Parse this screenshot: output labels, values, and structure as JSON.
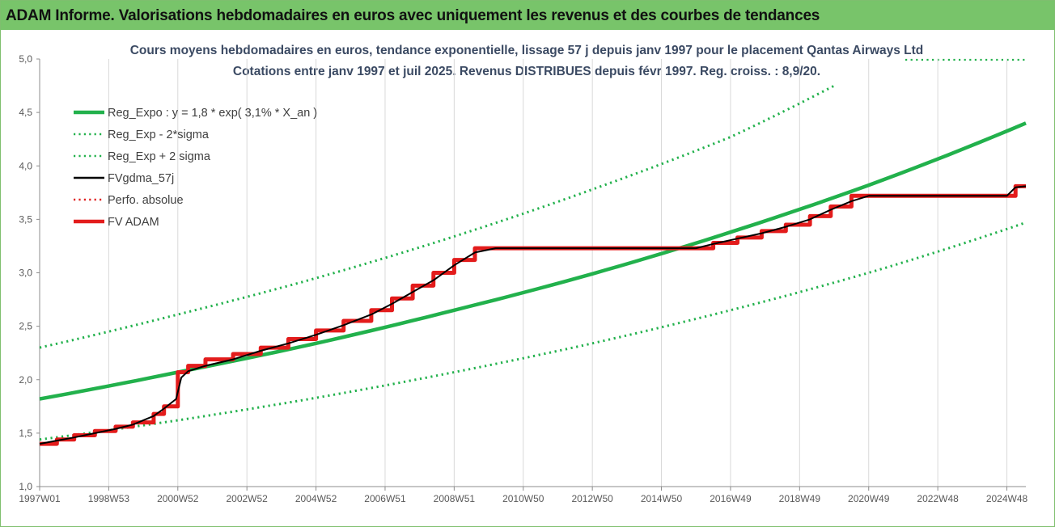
{
  "header": {
    "title": "ADAM Informe. Valorisations hebdomadaires en euros avec uniquement les revenus et des courbes de tendances"
  },
  "chart_data": {
    "type": "line",
    "title": "Cours moyens hebdomadaires en euros, tendance exponentielle, lissage 57 j depuis janv 1997 pour le placement Qantas Airways Ltd",
    "subtitle": "Cotations entre janv 1997 et juil 2025. Revenus DISTRIBUES depuis févr 1997. Reg. croiss. : 8,9/20.",
    "xlabel": "",
    "ylabel": "",
    "x_range": [
      1997.0,
      2025.55
    ],
    "ylim": [
      1.0,
      5.0
    ],
    "y_ticks": [
      "1,0",
      "1,5",
      "2,0",
      "2,5",
      "3,0",
      "3,5",
      "4,0",
      "4,5",
      "5,0"
    ],
    "x_ticks": [
      {
        "label": "1997W01",
        "x": 1997.0
      },
      {
        "label": "1998W53",
        "x": 1999.0
      },
      {
        "label": "2000W52",
        "x": 2001.0
      },
      {
        "label": "2002W52",
        "x": 2003.0
      },
      {
        "label": "2004W52",
        "x": 2005.0
      },
      {
        "label": "2006W51",
        "x": 2007.0
      },
      {
        "label": "2008W51",
        "x": 2009.0
      },
      {
        "label": "2010W50",
        "x": 2011.0
      },
      {
        "label": "2012W50",
        "x": 2013.0
      },
      {
        "label": "2014W50",
        "x": 2015.0
      },
      {
        "label": "2016W49",
        "x": 2017.0
      },
      {
        "label": "2018W49",
        "x": 2019.0
      },
      {
        "label": "2020W49",
        "x": 2021.0
      },
      {
        "label": "2022W48",
        "x": 2023.0
      },
      {
        "label": "2024W48",
        "x": 2025.0
      }
    ],
    "grid": "vertical",
    "legend_position": "top-left",
    "series": [
      {
        "name": "Reg_Expo : y = 1,8 * exp( 3,1% *  X_an )",
        "color": "#22b14c",
        "style": "solid",
        "width": 4.5,
        "points": [
          [
            1997.0,
            1.82
          ],
          [
            2001.0,
            2.07
          ],
          [
            2005.0,
            2.34
          ],
          [
            2009.0,
            2.65
          ],
          [
            2013.0,
            2.99
          ],
          [
            2017.0,
            3.38
          ],
          [
            2021.0,
            3.82
          ],
          [
            2025.55,
            4.4
          ]
        ]
      },
      {
        "name": "Reg_Exp - 2*sigma",
        "color": "#22b14c",
        "style": "dotted",
        "width": 3,
        "points": [
          [
            1997.0,
            1.44
          ],
          [
            2001.0,
            1.62
          ],
          [
            2005.0,
            1.83
          ],
          [
            2009.0,
            2.07
          ],
          [
            2013.0,
            2.34
          ],
          [
            2017.0,
            2.65
          ],
          [
            2021.0,
            3.0
          ],
          [
            2025.55,
            3.47
          ]
        ]
      },
      {
        "name": "Reg_Exp + 2 sigma",
        "color": "#22b14c",
        "style": "dotted",
        "width": 3,
        "points": [
          [
            1997.0,
            2.3
          ],
          [
            2001.0,
            2.61
          ],
          [
            2005.0,
            2.95
          ],
          [
            2009.0,
            3.34
          ],
          [
            2013.0,
            3.78
          ],
          [
            2017.0,
            4.27
          ],
          [
            2020.0,
            4.75
          ]
        ]
      },
      {
        "name": "FVgdma_57j",
        "color": "#000000",
        "style": "solid",
        "width": 2,
        "points": [
          [
            1997.0,
            1.4
          ],
          [
            1997.5,
            1.43
          ],
          [
            1998.0,
            1.46
          ],
          [
            1998.6,
            1.5
          ],
          [
            1999.2,
            1.54
          ],
          [
            1999.7,
            1.58
          ],
          [
            2000.3,
            1.66
          ],
          [
            2000.6,
            1.73
          ],
          [
            2000.95,
            1.82
          ],
          [
            2001.1,
            2.02
          ],
          [
            2001.3,
            2.08
          ],
          [
            2001.8,
            2.13
          ],
          [
            2002.6,
            2.19
          ],
          [
            2003.4,
            2.27
          ],
          [
            2004.2,
            2.34
          ],
          [
            2005.0,
            2.42
          ],
          [
            2005.8,
            2.51
          ],
          [
            2006.6,
            2.61
          ],
          [
            2007.2,
            2.71
          ],
          [
            2007.8,
            2.82
          ],
          [
            2008.4,
            2.93
          ],
          [
            2009.0,
            3.07
          ],
          [
            2009.6,
            3.19
          ],
          [
            2010.2,
            3.23
          ],
          [
            2016.0,
            3.23
          ],
          [
            2016.5,
            3.27
          ],
          [
            2017.2,
            3.32
          ],
          [
            2017.9,
            3.37
          ],
          [
            2018.6,
            3.43
          ],
          [
            2019.3,
            3.5
          ],
          [
            2019.9,
            3.59
          ],
          [
            2020.5,
            3.67
          ],
          [
            2021.0,
            3.72
          ],
          [
            2025.0,
            3.72
          ],
          [
            2025.25,
            3.8
          ],
          [
            2025.55,
            3.81
          ]
        ]
      },
      {
        "name": "Perfo. absolue",
        "color": "#e02020",
        "style": "dotted",
        "width": 2,
        "points": []
      },
      {
        "name": "FV ADAM",
        "color": "#e31c1c",
        "style": "stepped",
        "width": 5,
        "points": [
          [
            1997.0,
            1.4
          ],
          [
            1997.5,
            1.44
          ],
          [
            1998.0,
            1.48
          ],
          [
            1998.6,
            1.52
          ],
          [
            1999.2,
            1.56
          ],
          [
            1999.7,
            1.6
          ],
          [
            2000.3,
            1.68
          ],
          [
            2000.6,
            1.75
          ],
          [
            2001.0,
            2.07
          ],
          [
            2001.3,
            2.13
          ],
          [
            2001.8,
            2.19
          ],
          [
            2002.6,
            2.24
          ],
          [
            2003.4,
            2.3
          ],
          [
            2004.2,
            2.38
          ],
          [
            2005.0,
            2.46
          ],
          [
            2005.8,
            2.55
          ],
          [
            2006.6,
            2.65
          ],
          [
            2007.2,
            2.76
          ],
          [
            2007.8,
            2.88
          ],
          [
            2008.4,
            3.0
          ],
          [
            2009.0,
            3.12
          ],
          [
            2009.6,
            3.23
          ],
          [
            2016.0,
            3.23
          ],
          [
            2016.5,
            3.28
          ],
          [
            2017.2,
            3.33
          ],
          [
            2017.9,
            3.39
          ],
          [
            2018.6,
            3.45
          ],
          [
            2019.3,
            3.53
          ],
          [
            2019.9,
            3.62
          ],
          [
            2020.5,
            3.72
          ],
          [
            2025.0,
            3.72
          ],
          [
            2025.25,
            3.81
          ],
          [
            2025.55,
            3.81
          ]
        ]
      }
    ]
  }
}
